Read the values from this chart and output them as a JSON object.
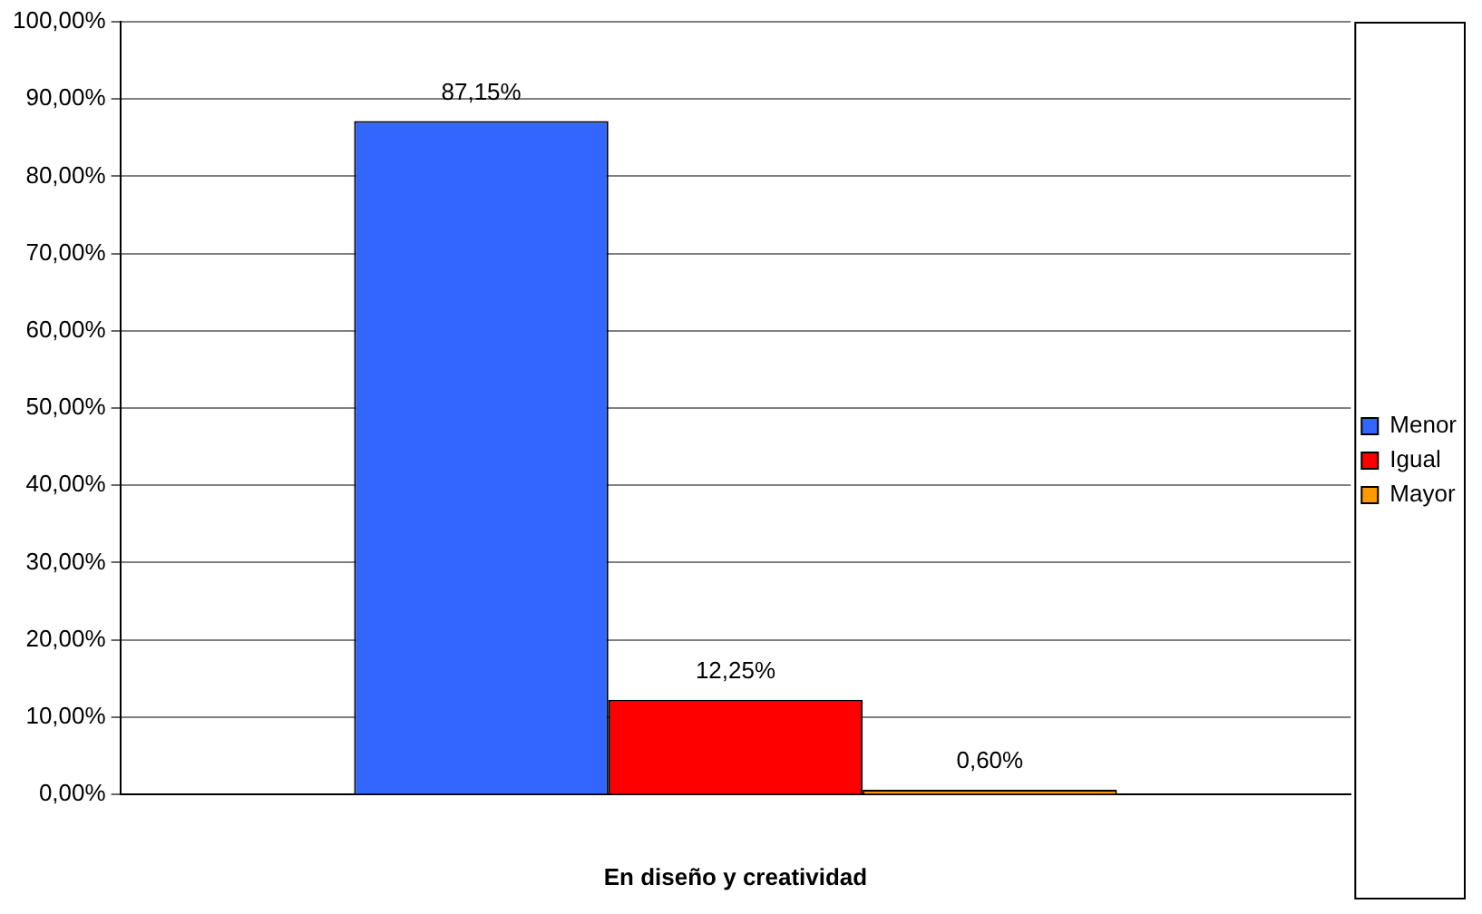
{
  "chart_data": {
    "type": "bar",
    "xlabel": "En diseño y creatividad",
    "categories": [
      null
    ],
    "series": [
      {
        "name": "Menor",
        "color": "#3366ff",
        "values": [
          87.15
        ],
        "value_labels": [
          "87,15%"
        ]
      },
      {
        "name": "Igual",
        "color": "#ff0000",
        "values": [
          12.25
        ],
        "value_labels": [
          "12,25%"
        ]
      },
      {
        "name": "Mayor",
        "color": "#ff9900",
        "values": [
          0.6
        ],
        "value_labels": [
          "0,60%"
        ]
      }
    ],
    "ylim": [
      0,
      100
    ],
    "yticks": [
      {
        "value": 0,
        "label": "0,00%"
      },
      {
        "value": 10,
        "label": "10,00%"
      },
      {
        "value": 20,
        "label": "20,00%"
      },
      {
        "value": 30,
        "label": "30,00%"
      },
      {
        "value": 40,
        "label": "40,00%"
      },
      {
        "value": 50,
        "label": "50,00%"
      },
      {
        "value": 60,
        "label": "60,00%"
      },
      {
        "value": 70,
        "label": "70,00%"
      },
      {
        "value": 80,
        "label": "80,00%"
      },
      {
        "value": 90,
        "label": "90,00%"
      },
      {
        "value": 100,
        "label": "100,00%"
      }
    ],
    "grid": "y",
    "legend": "right"
  }
}
